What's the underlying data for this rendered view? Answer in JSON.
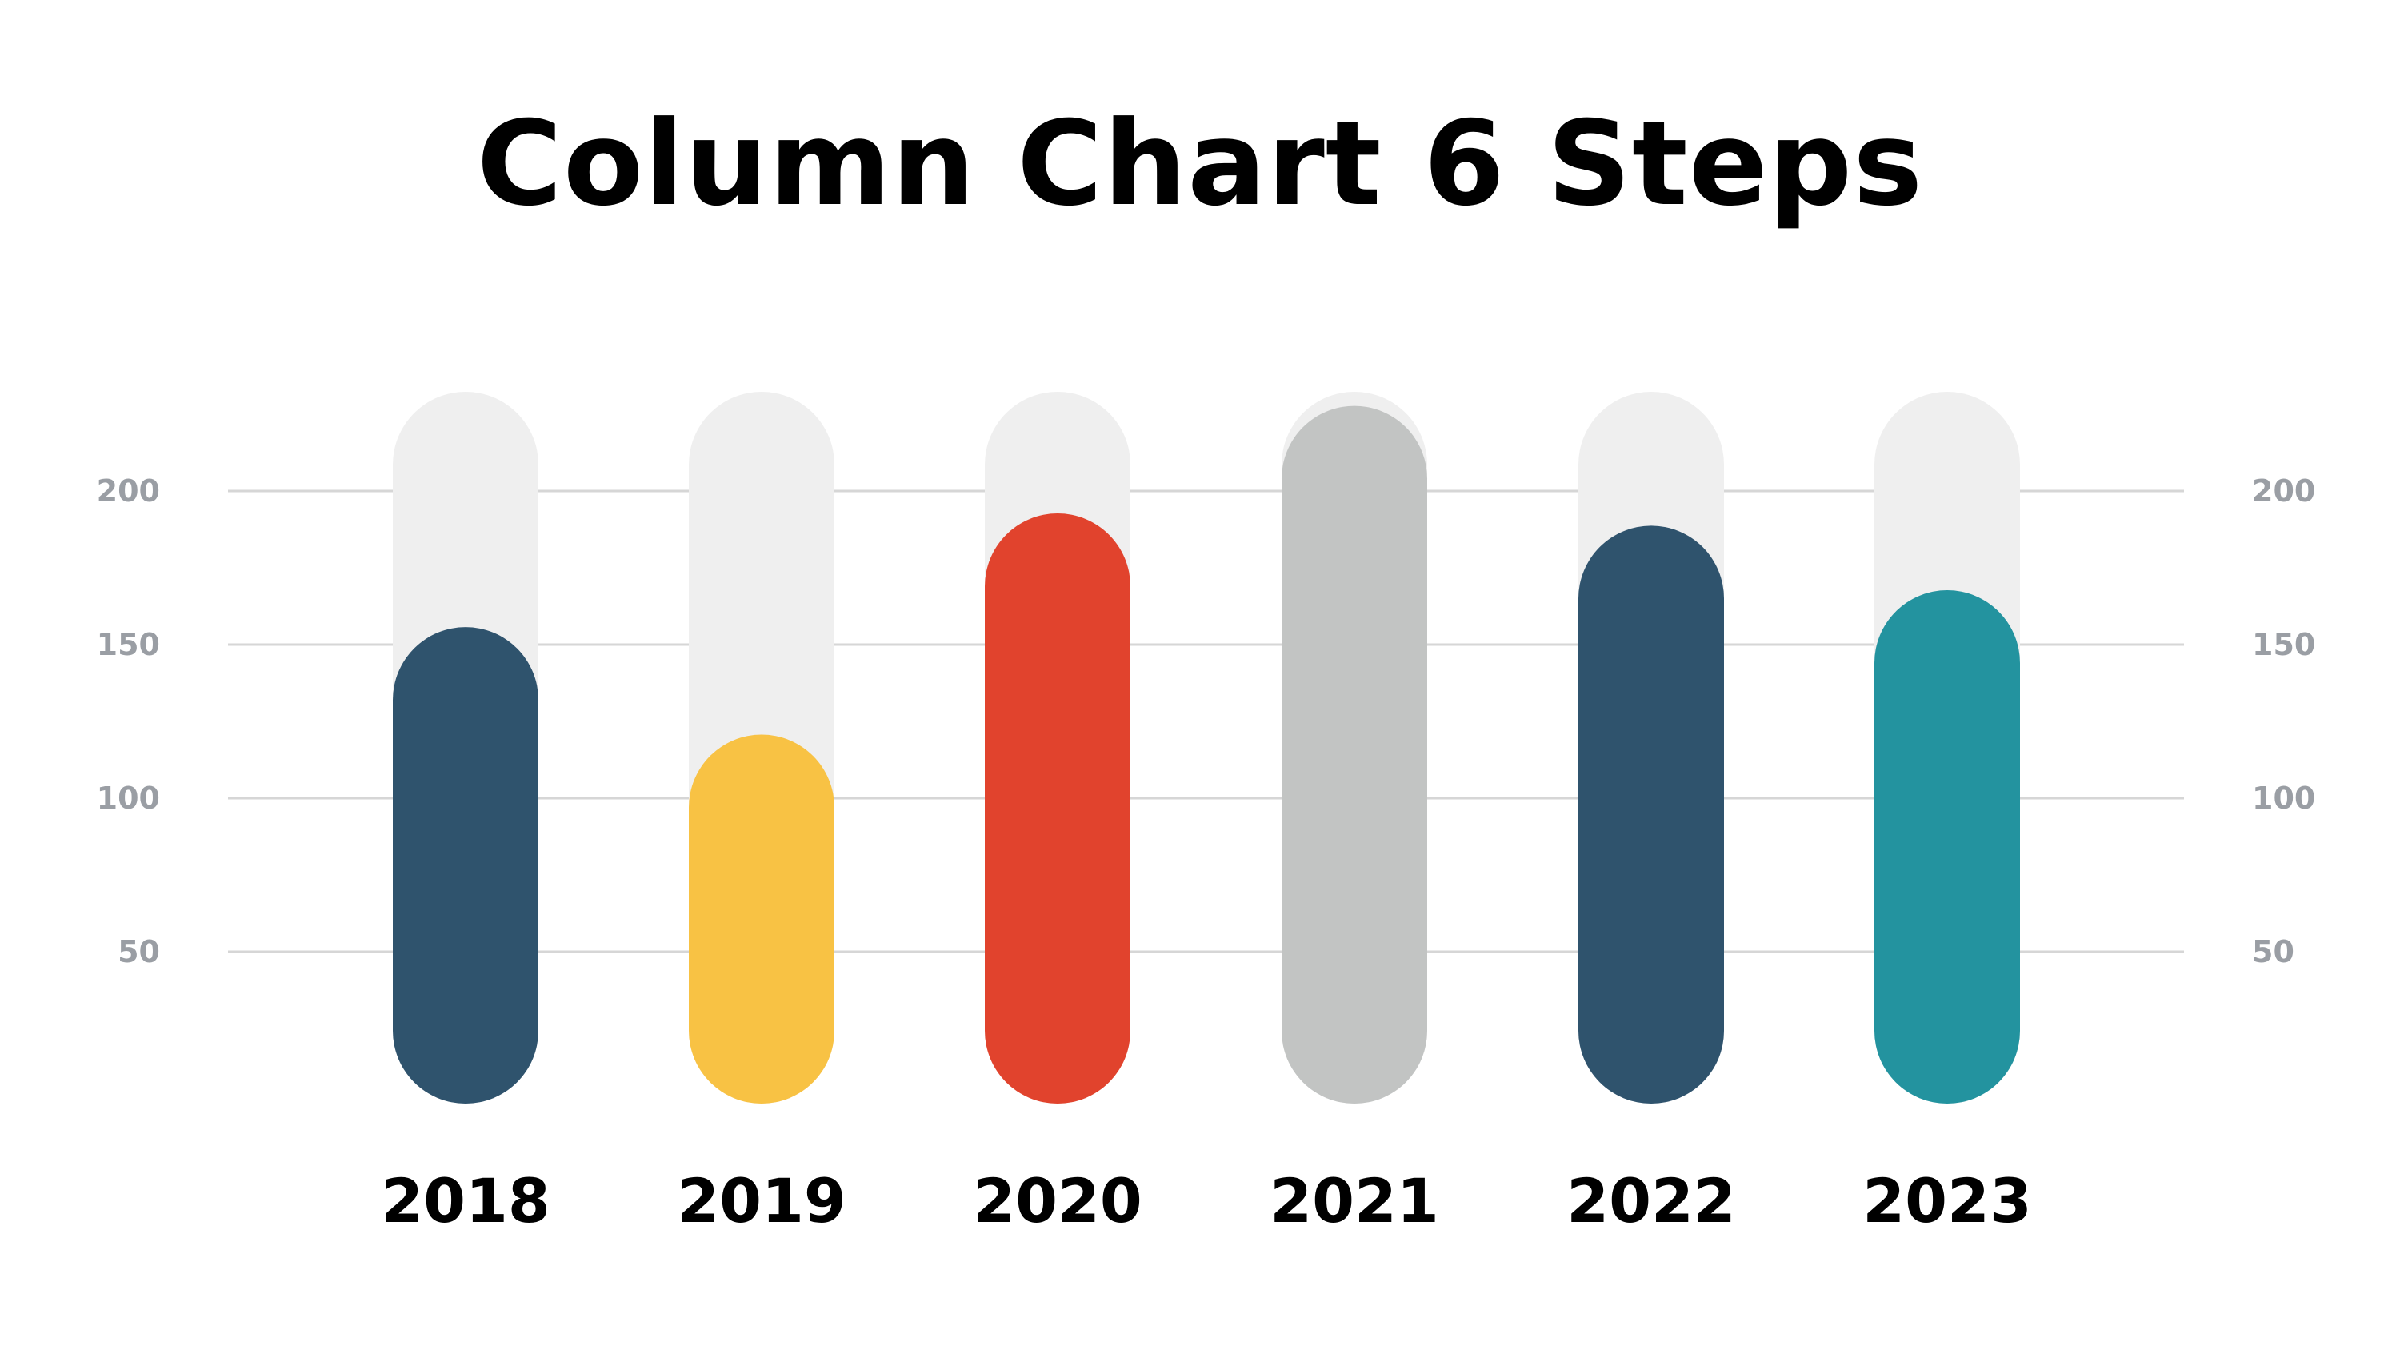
{
  "title": "Column Chart 6 Steps",
  "chart_data": {
    "type": "bar",
    "categories": [
      "2018",
      "2019",
      "2020",
      "2021",
      "2022",
      "2023"
    ],
    "values": [
      132,
      97,
      169,
      204,
      165,
      144
    ],
    "colors": [
      "#2f536d",
      "#f8c244",
      "#e1432d",
      "#c2c4c3",
      "#2f536d",
      "#23939f"
    ],
    "track_color": "#efefef",
    "gridline_color": "#d6d6d6",
    "y_ticks": [
      50,
      100,
      150,
      200
    ],
    "ylim": [
      0,
      230
    ],
    "y_axis_both_sides": true,
    "grid": true,
    "legend": "none"
  }
}
